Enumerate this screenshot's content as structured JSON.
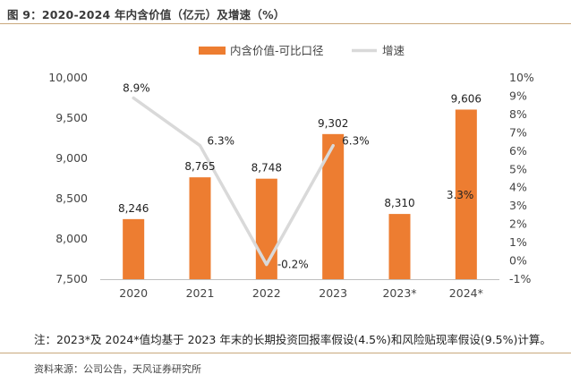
{
  "figure_title": "图 9：2020-2024 年内含价值（亿元）及增速（%）",
  "note": "注：2023*及 2024*值均基于 2023 年末的长期投资回报率假设(4.5%)和风险贴现率假设(9.5%)计算。",
  "source": "资料来源：公司公告，天风证券研究所",
  "colors": {
    "bar": "#ED7D31",
    "line": "#D9D9D9",
    "rule": "#C9A87C"
  },
  "chart_data": {
    "type": "bar",
    "categories": [
      "2020",
      "2021",
      "2022",
      "2023",
      "2023*",
      "2024*"
    ],
    "series": [
      {
        "name": "内含价值-可比口径",
        "type": "bar",
        "axis": "left",
        "values": [
          8246,
          8765,
          8748,
          9302,
          8310,
          9606
        ],
        "labels": [
          "8,246",
          "8,765",
          "8,748",
          "9,302",
          "8,310",
          "9,606"
        ]
      },
      {
        "name": "增速",
        "type": "line",
        "axis": "right",
        "values": [
          8.9,
          6.3,
          -0.2,
          6.3,
          null,
          3.3
        ],
        "labels": [
          "8.9%",
          "6.3%",
          "-0.2%",
          "6.3%",
          "",
          "3.3%"
        ]
      }
    ],
    "left_axis": {
      "min": 7500,
      "max": 10000,
      "ticks": [
        7500,
        8000,
        8500,
        9000,
        9500,
        10000
      ],
      "tick_labels": [
        "7,500",
        "8,000",
        "8,500",
        "9,000",
        "9,500",
        "10,000"
      ]
    },
    "right_axis": {
      "min": -1,
      "max": 10,
      "ticks": [
        -1,
        0,
        1,
        2,
        3,
        4,
        5,
        6,
        7,
        8,
        9,
        10
      ],
      "tick_labels": [
        "-1%",
        "0%",
        "1%",
        "2%",
        "3%",
        "4%",
        "5%",
        "6%",
        "7%",
        "8%",
        "9%",
        "10%"
      ]
    },
    "legend_position": "top",
    "grid": false
  }
}
